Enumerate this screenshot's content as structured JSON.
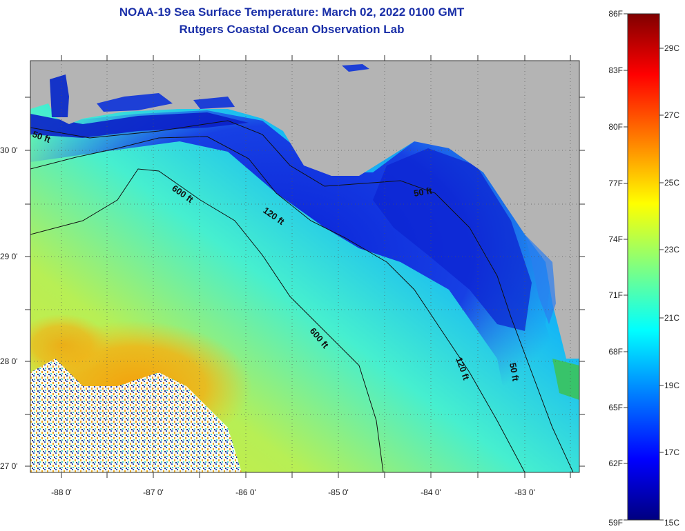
{
  "title": {
    "line1": "NOAA-19 Sea Surface Temperature:  March 02, 2022 0100 GMT",
    "line2": "Rutgers Coastal Ocean Observation Lab"
  },
  "map": {
    "lat_labels": [
      "30 0'",
      "29 0'",
      "28 0'",
      "27 0'"
    ],
    "lon_labels": [
      "-88 0'",
      "-87 0'",
      "-86 0'",
      "-85 0'",
      "-84 0'",
      "-83 0'"
    ],
    "contours": {
      "c50a": "50 ft",
      "c600a": "600 ft",
      "c120a": "120 ft",
      "c50b": "50 ft",
      "c600b": "600 ft",
      "c120b": "120 ft",
      "c50c": "50 ft"
    }
  },
  "colorbar": {
    "f_labels": [
      "86F",
      "83F",
      "80F",
      "77F",
      "74F",
      "71F",
      "68F",
      "65F",
      "62F",
      "59F"
    ],
    "c_labels": [
      "29C",
      "27C",
      "25C",
      "23C",
      "21C",
      "19C",
      "17C",
      "15C"
    ],
    "colors": [
      "#000080",
      "#0000ff",
      "#0080ff",
      "#00ffff",
      "#80ff80",
      "#ffff00",
      "#ff8000",
      "#ff0000",
      "#800000"
    ]
  }
}
